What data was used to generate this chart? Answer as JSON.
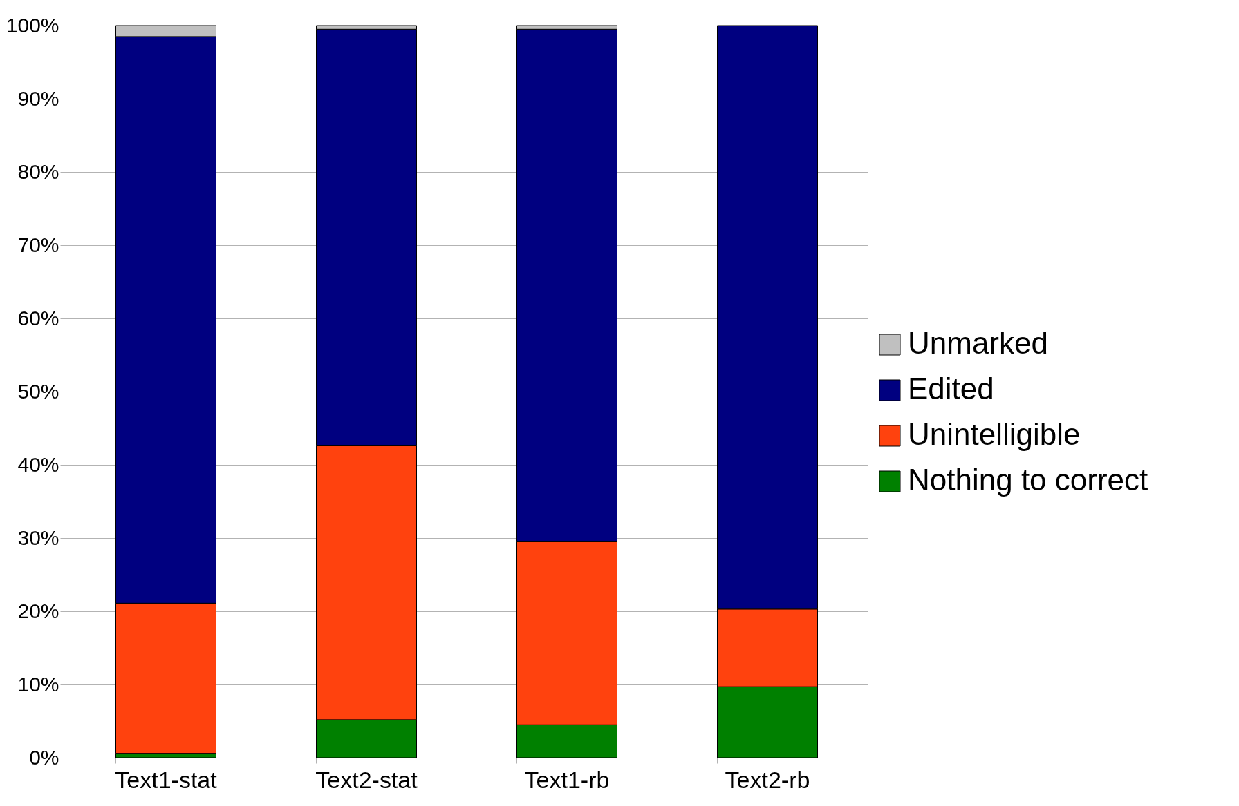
{
  "chart_data": {
    "type": "bar",
    "stacked": true,
    "categories": [
      "Text1-stat",
      "Text2-stat",
      "Text1-rb",
      "Text2-rb"
    ],
    "series": [
      {
        "name": "Nothing to correct",
        "color": "#008000",
        "values": [
          0.6,
          5.2,
          4.5,
          9.7
        ]
      },
      {
        "name": "Unintelligible",
        "color": "#ff420e",
        "values": [
          20.5,
          37.4,
          25,
          10.6
        ]
      },
      {
        "name": "Edited",
        "color": "#000080",
        "values": [
          77.4,
          56.9,
          70,
          79.7
        ]
      },
      {
        "name": "Unmarked",
        "color": "#c0c0c0",
        "values": [
          1.5,
          0.5,
          0.5,
          0
        ]
      }
    ],
    "ylim": [
      0,
      100
    ],
    "yticks": [
      {
        "value": 0,
        "label": "0%"
      },
      {
        "value": 10,
        "label": "10%"
      },
      {
        "value": 20,
        "label": "20%"
      },
      {
        "value": 30,
        "label": "30%"
      },
      {
        "value": 40,
        "label": "40%"
      },
      {
        "value": 50,
        "label": "50%"
      },
      {
        "value": 60,
        "label": "60%"
      },
      {
        "value": 70,
        "label": "70%"
      },
      {
        "value": 80,
        "label": "80%"
      },
      {
        "value": 90,
        "label": "90%"
      },
      {
        "value": 100,
        "label": "100%"
      }
    ],
    "grid": "y",
    "legend": "right"
  }
}
